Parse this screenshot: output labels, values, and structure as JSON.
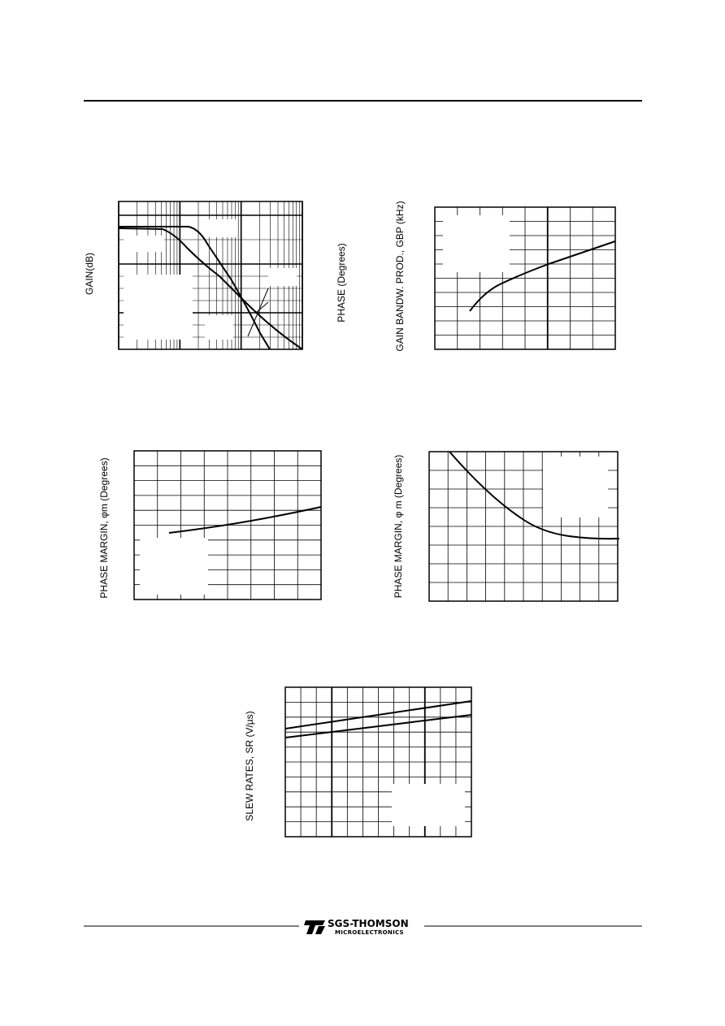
{
  "charts": [
    {
      "y_label": "GAIN(dB)",
      "y2_label": "PHASE (Degrees)"
    },
    {
      "y_label": "GAIN BANDW. PROD., GBP (kHz)"
    },
    {
      "y_label": "PHASE MARGIN, φm  (Degrees)"
    },
    {
      "y_label": "PHASE MARGIN, φ m  (Degrees)"
    },
    {
      "y_label": "SLEW RATES, SR (V/µs)"
    }
  ],
  "footer": {
    "brand": "SGS-THOMSON",
    "sub": "MICROELECTRONICS"
  }
}
